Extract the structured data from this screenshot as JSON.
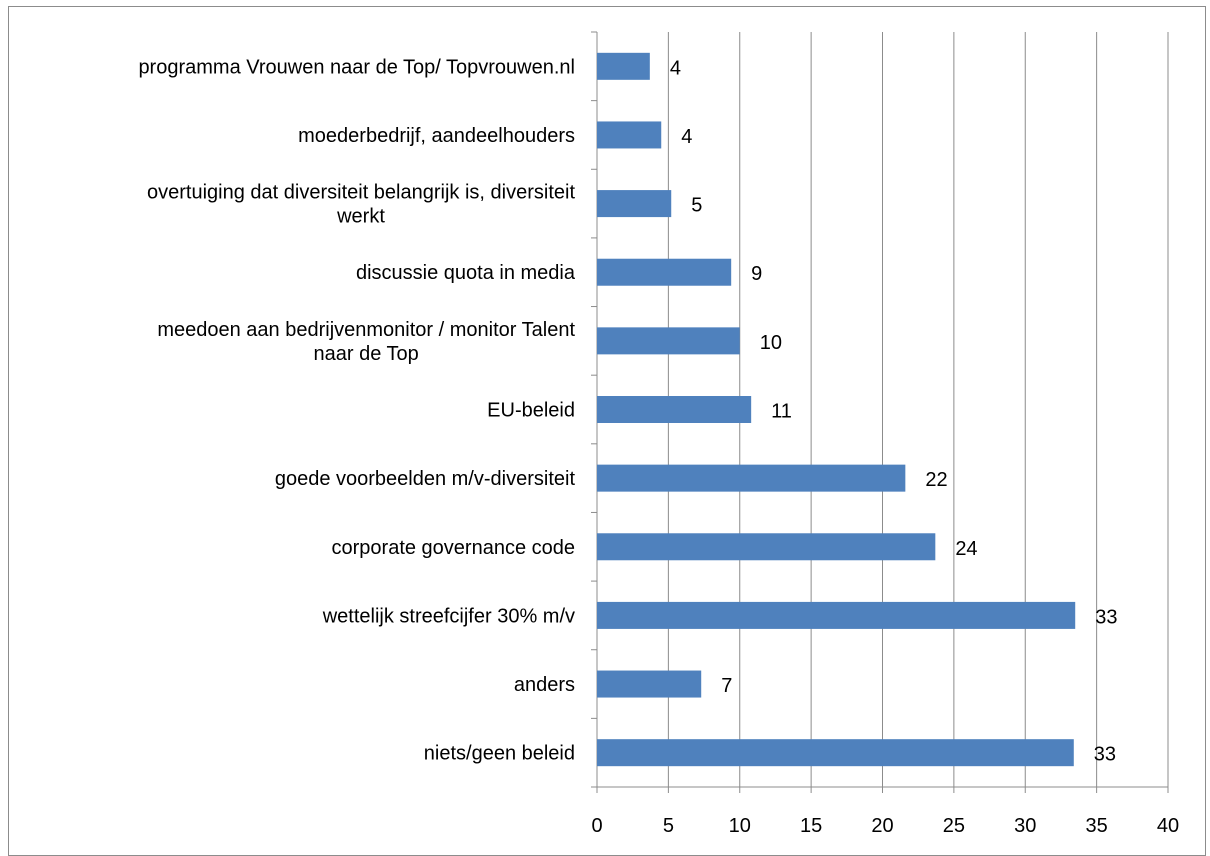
{
  "chart_data": {
    "type": "bar",
    "orientation": "horizontal",
    "title": "",
    "xlabel": "",
    "ylabel": "",
    "xlim": [
      0,
      40
    ],
    "x_ticks": [
      0,
      5,
      10,
      15,
      20,
      25,
      30,
      35,
      40
    ],
    "grid": "vertical",
    "legend": "none",
    "bar_color": "#4f81bd",
    "categories": [
      "programma Vrouwen naar de Top/ Topvrouwen.nl",
      "moederbedrijf, aandeelhouders",
      "overtuiging dat diversiteit belangrijk is, diversiteit werkt",
      "discussie quota in media",
      "meedoen aan bedrijvenmonitor / monitor Talent naar de Top",
      "EU-beleid",
      "goede voorbeelden m/v-diversiteit",
      "corporate governance code",
      "wettelijk streefcijfer 30% m/v",
      "anders",
      "niets/geen beleid"
    ],
    "category_lines": [
      [
        "programma Vrouwen naar de Top/ Topvrouwen.nl"
      ],
      [
        "moederbedrijf, aandeelhouders"
      ],
      [
        "overtuiging dat diversiteit belangrijk is, diversiteit",
        "werkt"
      ],
      [
        "discussie quota in media"
      ],
      [
        "meedoen aan bedrijvenmonitor / monitor Talent",
        "naar de Top"
      ],
      [
        "EU-beleid"
      ],
      [
        "goede voorbeelden m/v-diversiteit"
      ],
      [
        "corporate governance code"
      ],
      [
        "wettelijk streefcijfer 30% m/v"
      ],
      [
        "anders"
      ],
      [
        "niets/geen beleid"
      ]
    ],
    "values": [
      3.7,
      4.5,
      5.2,
      9.4,
      10,
      10.8,
      21.6,
      23.7,
      33.5,
      7.3,
      33.4
    ],
    "data_labels": [
      "4",
      "4",
      "5",
      "9",
      "10",
      "11",
      "22",
      "24",
      "33",
      "7",
      "33"
    ]
  }
}
